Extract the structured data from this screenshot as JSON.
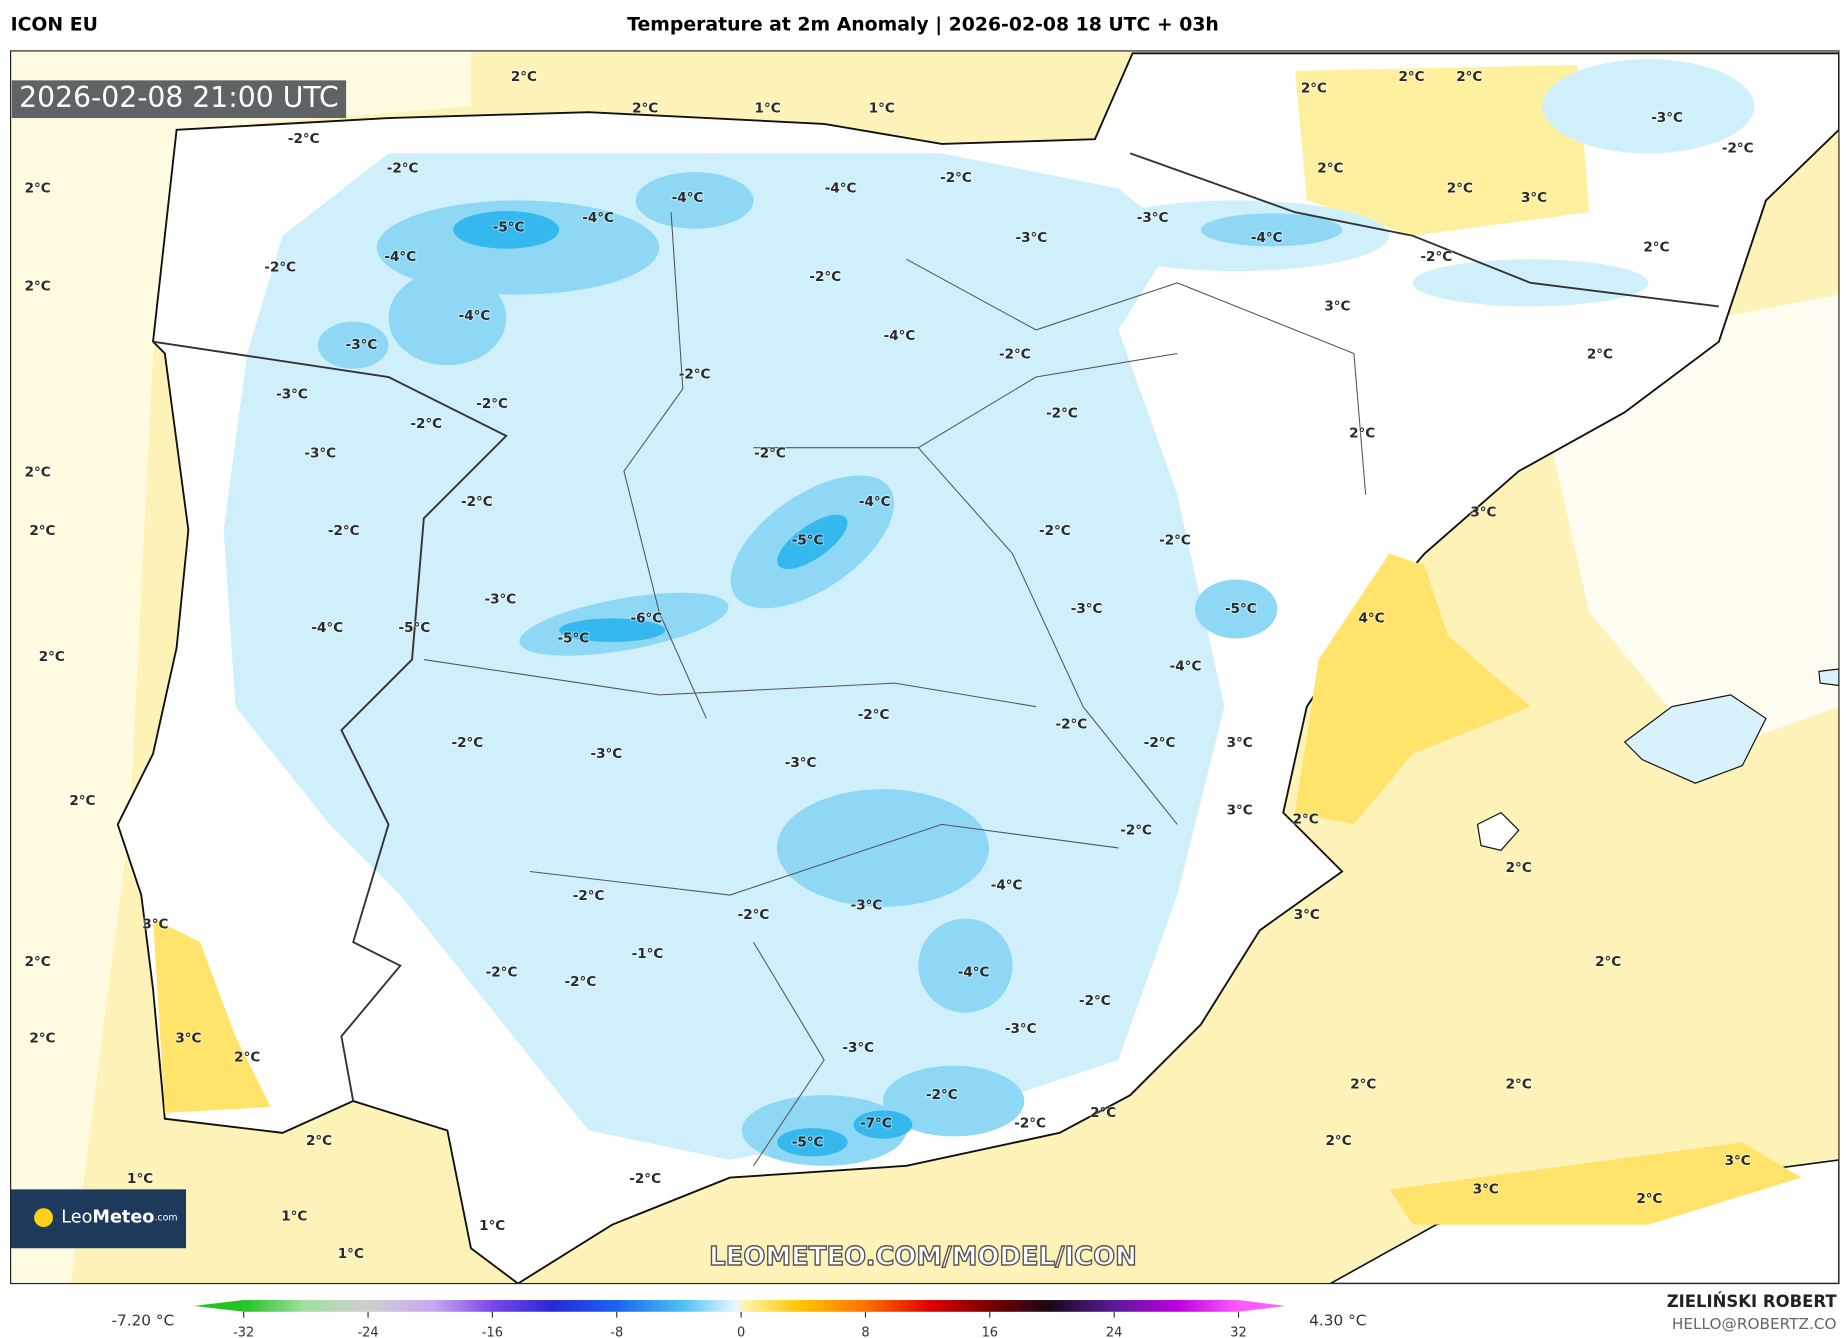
{
  "header": {
    "model": "ICON EU",
    "title": "Temperature at 2m Anomaly | 2026-02-08 18 UTC + 03h"
  },
  "map": {
    "valid_time": "2026-02-08 21:00 UTC",
    "watermark": "LEOMETEO.COM/MODEL/ICON",
    "logo": [
      "Leo",
      "Meteo",
      ".com"
    ],
    "labels": [
      "2°C",
      "2°C",
      "1°C",
      "1°C",
      "2°C",
      "2°C",
      "2°C",
      "-3°C",
      "-2°C",
      "2°C",
      "-2°C",
      "-2°C",
      "-4°C",
      "-4°C",
      "-2°C",
      "2°C",
      "2°C",
      "3°C",
      "-5°C",
      "-4°C",
      "-4°C",
      "-3°C",
      "-4°C",
      "-3°C",
      "-2°C",
      "2°C",
      "2°C",
      "-2°C",
      "-2°C",
      "-4°C",
      "3°C",
      "-3°C",
      "-4°C",
      "-2°C",
      "2°C",
      "-3°C",
      "-2°C",
      "-2°C",
      "-2°C",
      "-2°C",
      "2°C",
      "-3°C",
      "-2°C",
      "2°C",
      "-2°C",
      "-4°C",
      "-2°C",
      "2°C",
      "-5°C",
      "-2°C",
      "-2°C",
      "3°C",
      "-3°C",
      "-6°C",
      "-3°C",
      "-5°C",
      "4°C",
      "-4°C",
      "-5°C",
      "-5°C",
      "2°C",
      "-4°C",
      "-2°C",
      "-2°C",
      "-2°C",
      "-3°C",
      "-3°C",
      "-2°C",
      "3°C",
      "2°C",
      "3°C",
      "2°C",
      "-2°C",
      "2°C",
      "-4°C",
      "-2°C",
      "-3°C",
      "-2°C",
      "3°C",
      "3°C",
      "-1°C",
      "2°C",
      "-2°C",
      "-4°C",
      "-2°C",
      "2°C",
      "-2°C",
      "2°C",
      "3°C",
      "-3°C",
      "-3°C",
      "2°C",
      "2°C",
      "2°C",
      "-2°C",
      "2°C",
      "-7°C",
      "-2°C",
      "2°C",
      "-5°C",
      "2°C",
      "3°C",
      "1°C",
      "-2°C",
      "3°C",
      "2°C",
      "1°C",
      "1°C",
      "1°C"
    ]
  },
  "legend": {
    "min_label": "-7.20 °C",
    "max_label": "4.30 °C",
    "ticks": [
      -32,
      -24,
      -16,
      -8,
      0,
      8,
      16,
      24,
      32
    ]
  },
  "credits": {
    "author": "ZIELIŃSKI ROBERT",
    "contact": "HELLO@ROBERTZ.CO"
  }
}
